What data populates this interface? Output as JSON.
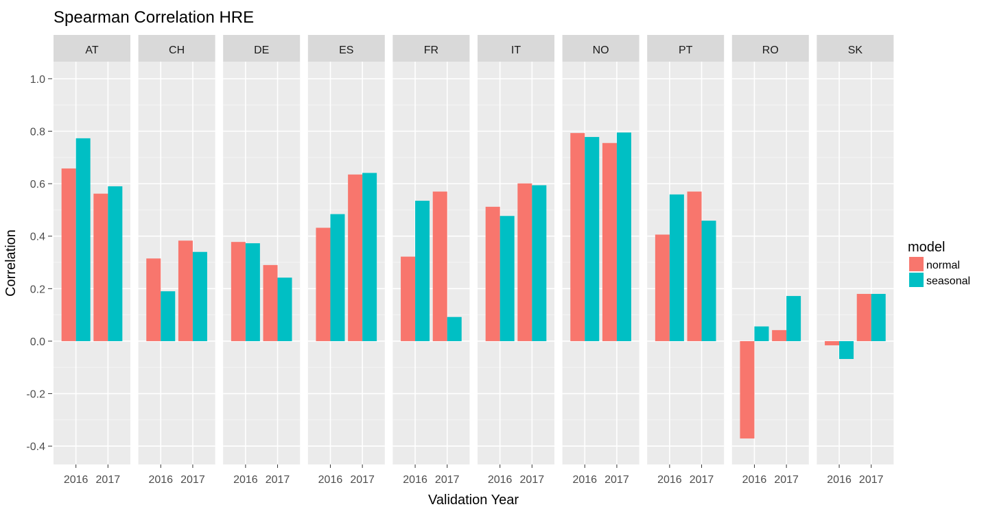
{
  "chart_data": {
    "type": "bar",
    "title": "Spearman Correlation HRE",
    "xlabel": "Validation Year",
    "ylabel": "Correlation",
    "ylim": [
      -0.47,
      1.065
    ],
    "y_ticks": [
      "-0.4",
      "-0.2",
      "0.0",
      "0.2",
      "0.4",
      "0.6",
      "0.8",
      "1.0"
    ],
    "y_tick_values": [
      -0.4,
      -0.2,
      0.0,
      0.2,
      0.4,
      0.6,
      0.8,
      1.0
    ],
    "categories": [
      "2016",
      "2017"
    ],
    "grid": true,
    "legend_position": "right",
    "legend": {
      "title": "model",
      "items": [
        {
          "name": "normal",
          "color": "#F8766D"
        },
        {
          "name": "seasonal",
          "color": "#00BFC4"
        }
      ]
    },
    "facets": [
      {
        "label": "AT",
        "series": [
          {
            "name": "normal",
            "values": [
              0.658,
              0.562
            ]
          },
          {
            "name": "seasonal",
            "values": [
              0.773,
              0.59
            ]
          }
        ]
      },
      {
        "label": "CH",
        "series": [
          {
            "name": "normal",
            "values": [
              0.315,
              0.383
            ]
          },
          {
            "name": "seasonal",
            "values": [
              0.19,
              0.34
            ]
          }
        ]
      },
      {
        "label": "DE",
        "series": [
          {
            "name": "normal",
            "values": [
              0.378,
              0.29
            ]
          },
          {
            "name": "seasonal",
            "values": [
              0.373,
              0.242
            ]
          }
        ]
      },
      {
        "label": "ES",
        "series": [
          {
            "name": "normal",
            "values": [
              0.432,
              0.635
            ]
          },
          {
            "name": "seasonal",
            "values": [
              0.484,
              0.641
            ]
          }
        ]
      },
      {
        "label": "FR",
        "series": [
          {
            "name": "normal",
            "values": [
              0.322,
              0.57
            ]
          },
          {
            "name": "seasonal",
            "values": [
              0.535,
              0.092
            ]
          }
        ]
      },
      {
        "label": "IT",
        "series": [
          {
            "name": "normal",
            "values": [
              0.512,
              0.601
            ]
          },
          {
            "name": "seasonal",
            "values": [
              0.477,
              0.594
            ]
          }
        ]
      },
      {
        "label": "NO",
        "series": [
          {
            "name": "normal",
            "values": [
              0.793,
              0.755
            ]
          },
          {
            "name": "seasonal",
            "values": [
              0.778,
              0.795
            ]
          }
        ]
      },
      {
        "label": "PT",
        "series": [
          {
            "name": "normal",
            "values": [
              0.406,
              0.57
            ]
          },
          {
            "name": "seasonal",
            "values": [
              0.559,
              0.459
            ]
          }
        ]
      },
      {
        "label": "RO",
        "series": [
          {
            "name": "normal",
            "values": [
              -0.371,
              0.042
            ]
          },
          {
            "name": "seasonal",
            "values": [
              0.056,
              0.172
            ]
          }
        ]
      },
      {
        "label": "SK",
        "series": [
          {
            "name": "normal",
            "values": [
              -0.016,
              0.18
            ]
          },
          {
            "name": "seasonal",
            "values": [
              -0.068,
              0.18
            ]
          }
        ]
      }
    ]
  }
}
